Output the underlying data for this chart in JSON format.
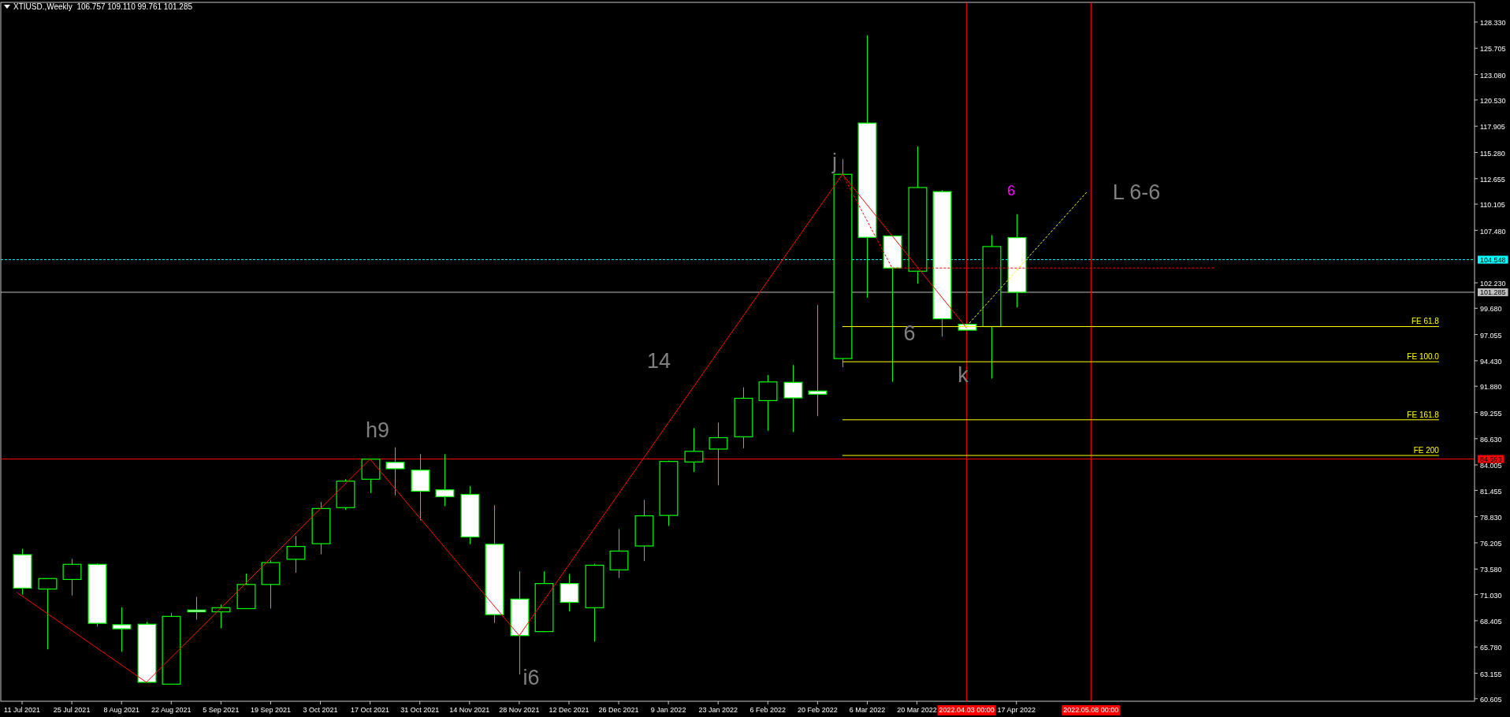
{
  "chart_data": {
    "type": "candlestick",
    "title": "XTIUSD.,Weekly  106.757 109.110 99.761 101.285",
    "color": "#00ff00",
    "x": [
      "2021-07-11",
      "2021-07-18",
      "2021-07-25",
      "2021-08-01",
      "2021-08-08",
      "2021-08-15",
      "2021-08-22",
      "2021-08-29",
      "2021-09-05",
      "2021-09-12",
      "2021-09-19",
      "2021-09-26",
      "2021-10-03",
      "2021-10-10",
      "2021-10-17",
      "2021-10-24",
      "2021-10-31",
      "2021-11-07",
      "2021-11-14",
      "2021-11-21",
      "2021-11-28",
      "2021-12-05",
      "2021-12-12",
      "2021-12-19",
      "2021-12-26",
      "2022-01-02",
      "2022-01-09",
      "2022-01-16",
      "2022-01-23",
      "2022-01-30",
      "2022-02-06",
      "2022-02-13",
      "2022-02-20",
      "2022-02-27",
      "2022-03-06",
      "2022-03-13",
      "2022-03-20",
      "2022-03-27",
      "2022-04-03",
      "2022-04-10",
      "2022-04-17"
    ],
    "ohlc": [
      [
        75.02,
        75.61,
        71.03,
        71.67
      ],
      [
        71.58,
        72.63,
        65.54,
        72.63
      ],
      [
        72.54,
        74.6,
        70.94,
        74.05
      ],
      [
        74.05,
        74.14,
        67.83,
        68.15
      ],
      [
        68.01,
        69.75,
        65.3,
        67.6
      ],
      [
        68.06,
        68.29,
        62.25,
        62.25
      ],
      [
        62.06,
        69.2,
        62.06,
        68.84
      ],
      [
        69.48,
        70.8,
        68.52,
        69.3
      ],
      [
        69.3,
        70.03,
        67.65,
        69.71
      ],
      [
        69.62,
        73.13,
        69.62,
        72.04
      ],
      [
        72.04,
        74.46,
        69.62,
        74.23
      ],
      [
        74.56,
        76.89,
        73.22,
        75.84
      ],
      [
        76.12,
        80.28,
        75.07,
        79.64
      ],
      [
        79.73,
        82.57,
        79.5,
        82.38
      ],
      [
        82.57,
        84.58,
        81.19,
        84.58
      ],
      [
        84.26,
        85.77,
        80.96,
        83.62
      ],
      [
        83.48,
        85.09,
        78.45,
        81.37
      ],
      [
        81.51,
        85.09,
        79.87,
        80.83
      ],
      [
        81.05,
        81.88,
        76.06,
        76.79
      ],
      [
        76.06,
        79.96,
        68.19,
        69.02
      ],
      [
        70.58,
        73.35,
        63.03,
        66.92
      ],
      [
        67.32,
        73.35,
        67.32,
        72.13
      ],
      [
        72.13,
        73.09,
        69.34,
        70.25
      ],
      [
        69.71,
        74.1,
        66.32,
        73.96
      ],
      [
        73.5,
        77.58,
        72.68,
        75.38
      ],
      [
        75.89,
        80.51,
        74.37,
        78.91
      ],
      [
        78.95,
        84.44,
        77.9,
        84.35
      ],
      [
        84.3,
        87.69,
        83.3,
        85.36
      ],
      [
        85.59,
        88.24,
        81.97,
        86.73
      ],
      [
        86.82,
        91.77,
        85.68,
        90.67
      ],
      [
        90.44,
        93.0,
        87.42,
        92.31
      ],
      [
        92.27,
        94.01,
        87.28,
        90.71
      ],
      [
        91.4,
        100.0,
        88.88,
        91.08
      ],
      [
        94.65,
        114.6,
        93.78,
        113.09
      ],
      [
        118.22,
        127.0,
        100.74,
        106.78
      ],
      [
        106.92,
        106.92,
        92.32,
        103.71
      ],
      [
        103.39,
        115.89,
        102.15,
        111.77
      ],
      [
        111.36,
        111.5,
        96.85,
        98.63
      ],
      [
        98.08,
        98.08,
        97.49,
        97.49
      ],
      [
        97.85,
        107.01,
        92.64,
        105.86
      ],
      [
        106.757,
        109.11,
        99.761,
        101.285
      ]
    ],
    "series": [
      {
        "type": "line",
        "color": "#ff0000",
        "line_style": "solid",
        "x": [
          "2021-07-09T12:00",
          "2021-08-15",
          "2021-10-17",
          "2021-11-28",
          "2022-02-27",
          "2022-04-03"
        ],
        "values": [
          71.25,
          62.25,
          84.58,
          66.92,
          113.09,
          97.7
        ]
      },
      {
        "type": "line",
        "color": "#ff0000",
        "line_style": "dashed",
        "x": [
          "2022-02-27",
          "2022-03-13",
          "2022-06-12"
        ],
        "values": [
          113.09,
          103.71,
          103.71
        ]
      },
      {
        "type": "line",
        "color": "#ffff00",
        "line_style": "dashed",
        "x": [
          "2022-04-03",
          "2022-05-07"
        ],
        "values": [
          97.9,
          111.39
        ]
      },
      {
        "type": "line",
        "name": "FE 61.8",
        "color": "#ffff00",
        "line_style": "solid",
        "x": [
          "2022-02-27",
          "2022-08-14"
        ],
        "values": [
          97.85,
          97.85
        ]
      },
      {
        "type": "line",
        "name": "FE 100.0",
        "color": "#ffff00",
        "line_style": "solid",
        "x": [
          "2022-02-27",
          "2022-08-14"
        ],
        "values": [
          94.33,
          94.33
        ]
      },
      {
        "type": "line",
        "name": "FE 161.8",
        "color": "#ffff00",
        "line_style": "solid",
        "x": [
          "2022-02-27",
          "2022-08-14"
        ],
        "values": [
          88.52,
          88.52
        ]
      },
      {
        "type": "line",
        "name": "FE 200",
        "color": "#ffff00",
        "line_style": "solid",
        "x": [
          "2022-02-27",
          "2022-08-14"
        ],
        "values": [
          84.95,
          84.95
        ]
      }
    ],
    "xlim": [
      "2021-07-05",
      "2022-08-24"
    ],
    "xticks": [
      {
        "value": "2021-07-11",
        "label": "11 Jul 2021"
      },
      {
        "value": "2021-07-25",
        "label": "25 Jul 2021"
      },
      {
        "value": "2021-08-08",
        "label": "8 Aug 2021"
      },
      {
        "value": "2021-08-22",
        "label": "22 Aug 2021"
      },
      {
        "value": "2021-09-05",
        "label": "5 Sep 2021"
      },
      {
        "value": "2021-09-19",
        "label": "19 Sep 2021"
      },
      {
        "value": "2021-10-03",
        "label": "3 Oct 2021"
      },
      {
        "value": "2021-10-17",
        "label": "17 Oct 2021"
      },
      {
        "value": "2021-10-31",
        "label": "31 Oct 2021"
      },
      {
        "value": "2021-11-14",
        "label": "14 Nov 2021"
      },
      {
        "value": "2021-11-28",
        "label": "28 Nov 2021"
      },
      {
        "value": "2021-12-12",
        "label": "12 Dec 2021"
      },
      {
        "value": "2021-12-26",
        "label": "26 Dec 2021"
      },
      {
        "value": "2022-01-09",
        "label": "9 Jan 2022"
      },
      {
        "value": "2022-01-23",
        "label": "23 Jan 2022"
      },
      {
        "value": "2022-02-06",
        "label": "6 Feb 2022"
      },
      {
        "value": "2022-02-20",
        "label": "20 Feb 2022"
      },
      {
        "value": "2022-03-06",
        "label": "6 Mar 2022"
      },
      {
        "value": "2022-03-20",
        "label": "20 Mar 2022"
      },
      {
        "value": "2022-04-17",
        "label": "17 Apr 2022"
      }
    ],
    "ylim": [
      60.35,
      130.3
    ],
    "yticks": [
      {
        "value": 60.605,
        "label": "60.605"
      },
      {
        "value": 63.155,
        "label": "63.155"
      },
      {
        "value": 65.78,
        "label": "65.780"
      },
      {
        "value": 68.405,
        "label": "68.405"
      },
      {
        "value": 71.03,
        "label": "71.030"
      },
      {
        "value": 73.58,
        "label": "73.580"
      },
      {
        "value": 76.205,
        "label": "76.205"
      },
      {
        "value": 78.83,
        "label": "78.830"
      },
      {
        "value": 81.455,
        "label": "81.455"
      },
      {
        "value": 84.005,
        "label": "84.005"
      },
      {
        "value": 86.63,
        "label": "86.630"
      },
      {
        "value": 89.255,
        "label": "89.255"
      },
      {
        "value": 91.88,
        "label": "91.880"
      },
      {
        "value": 94.43,
        "label": "94.430"
      },
      {
        "value": 97.055,
        "label": "97.055"
      },
      {
        "value": 99.68,
        "label": "99.680"
      },
      {
        "value": 102.23,
        "label": "102.230"
      },
      {
        "value": 107.48,
        "label": "107.480"
      },
      {
        "value": 110.105,
        "label": "110.105"
      },
      {
        "value": 112.655,
        "label": "112.655"
      },
      {
        "value": 115.28,
        "label": "115.280"
      },
      {
        "value": 117.905,
        "label": "117.905"
      },
      {
        "value": 120.53,
        "label": "120.530"
      },
      {
        "value": 123.08,
        "label": "123.080"
      },
      {
        "value": 125.705,
        "label": "125.705"
      },
      {
        "value": 128.33,
        "label": "128.330"
      }
    ],
    "ref_lines": [
      {
        "axis": "y",
        "value": 104.548,
        "label": "104.548",
        "color": "#00ffff",
        "line_style": "dashed"
      },
      {
        "axis": "y",
        "value": 101.285,
        "label": "101.285",
        "color": "#c0c0c0",
        "line_style": "solid"
      },
      {
        "axis": "y",
        "value": 84.593,
        "label": "84.593",
        "color": "#ff0000",
        "line_style": "solid"
      },
      {
        "axis": "x",
        "value": "2022-04-03",
        "label": "2022.04.03 00:00",
        "color": "#ff0000",
        "line_style": "solid"
      },
      {
        "axis": "x",
        "value": "2022-05-08",
        "label": "2022.05.08 00:00",
        "color": "#ff0000",
        "line_style": "solid"
      }
    ],
    "annotations": [
      "h9",
      "i6",
      "14",
      "j",
      "6",
      "k",
      "6",
      "L 6-6"
    ]
  }
}
